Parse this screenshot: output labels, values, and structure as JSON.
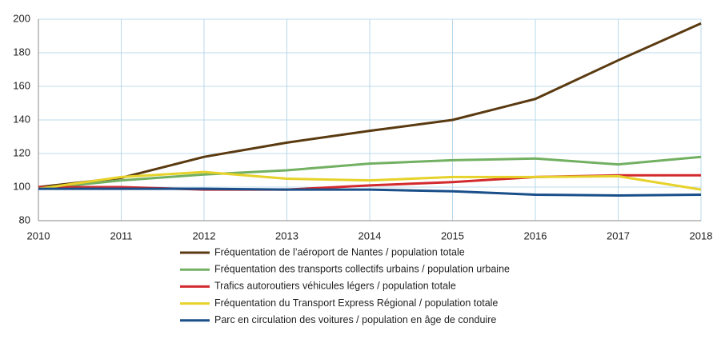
{
  "chart_data": {
    "type": "line",
    "x": [
      2010,
      2011,
      2012,
      2013,
      2014,
      2015,
      2016,
      2017,
      2018
    ],
    "series": [
      {
        "name": "Fréquentation de l’aéroport de Nantes / population totale",
        "color": "#5a3a10",
        "values": [
          100,
          105.5,
          118,
          126.5,
          133.5,
          140,
          152.5,
          175.5,
          197.5
        ]
      },
      {
        "name": "Fréquentation des transports collectifs urbains / population urbaine",
        "color": "#72b062",
        "values": [
          99,
          104,
          107.5,
          110,
          114,
          116,
          117,
          113.5,
          118
        ]
      },
      {
        "name": "Trafics autoroutiers véhicules légers / population totale",
        "color": "#d32a2e",
        "values": [
          100,
          100,
          98.5,
          98.5,
          101,
          103,
          106,
          107,
          107
        ]
      },
      {
        "name": "Fréquentation du Transport Express Régional / population totale",
        "color": "#e6d22a",
        "values": [
          99,
          106,
          109,
          105,
          104,
          106,
          106,
          106.5,
          98.5
        ]
      },
      {
        "name": "Parc en circulation des voitures / population en âge de conduire",
        "color": "#1a4f8a",
        "values": [
          99,
          99,
          99,
          98.5,
          98.5,
          97.5,
          95.5,
          95,
          95.5
        ]
      }
    ],
    "xlim": [
      2010,
      2018
    ],
    "xticks": [
      2010,
      2011,
      2012,
      2013,
      2014,
      2015,
      2016,
      2017,
      2018
    ],
    "ylim": [
      80,
      200
    ],
    "yticks": [
      80,
      100,
      120,
      140,
      160,
      180,
      200
    ],
    "grid": true
  }
}
